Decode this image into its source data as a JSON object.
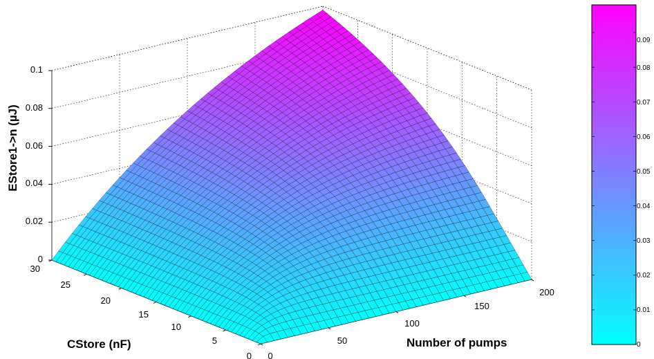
{
  "chart_data": {
    "type": "surface3d",
    "title": "",
    "xlabel": "Number of pumps",
    "ylabel": "CStore (nF)",
    "zlabel": "EStore1->n (µJ)",
    "x_ticks": [
      "0",
      "50",
      "100",
      "150",
      "200"
    ],
    "y_ticks": [
      "0",
      "5",
      "10",
      "15",
      "20",
      "25",
      "30"
    ],
    "z_ticks": [
      "0",
      "0.02",
      "0.04",
      "0.06",
      "0.08",
      "0.1"
    ],
    "xlim": [
      0,
      200
    ],
    "ylim": [
      0,
      30
    ],
    "zlim": [
      0,
      0.1
    ],
    "grid": true,
    "colormap": {
      "low": "#00ffff",
      "high": "#ff00ff"
    },
    "colorbar": {
      "range": [
        0,
        0.098
      ],
      "ticks": [
        "0",
        "0.01",
        "0.02",
        "0.03",
        "0.04",
        "0.05",
        "0.06",
        "0.07",
        "0.08",
        "0.09"
      ]
    },
    "max_surface_value": 0.098,
    "surface_samples": [
      {
        "pumps": 200,
        "cstore_nF": 30,
        "value": 0.098
      },
      {
        "pumps": 200,
        "cstore_nF": 20,
        "value": 0.068
      },
      {
        "pumps": 200,
        "cstore_nF": 15,
        "value": 0.052
      },
      {
        "pumps": 200,
        "cstore_nF": 10,
        "value": 0.035
      },
      {
        "pumps": 200,
        "cstore_nF": 5,
        "value": 0.016
      },
      {
        "pumps": 100,
        "cstore_nF": 30,
        "value": 0.085
      },
      {
        "pumps": 50,
        "cstore_nF": 30,
        "value": 0.06
      },
      {
        "pumps": 0,
        "cstore_nF": 0,
        "value": 0
      }
    ]
  }
}
